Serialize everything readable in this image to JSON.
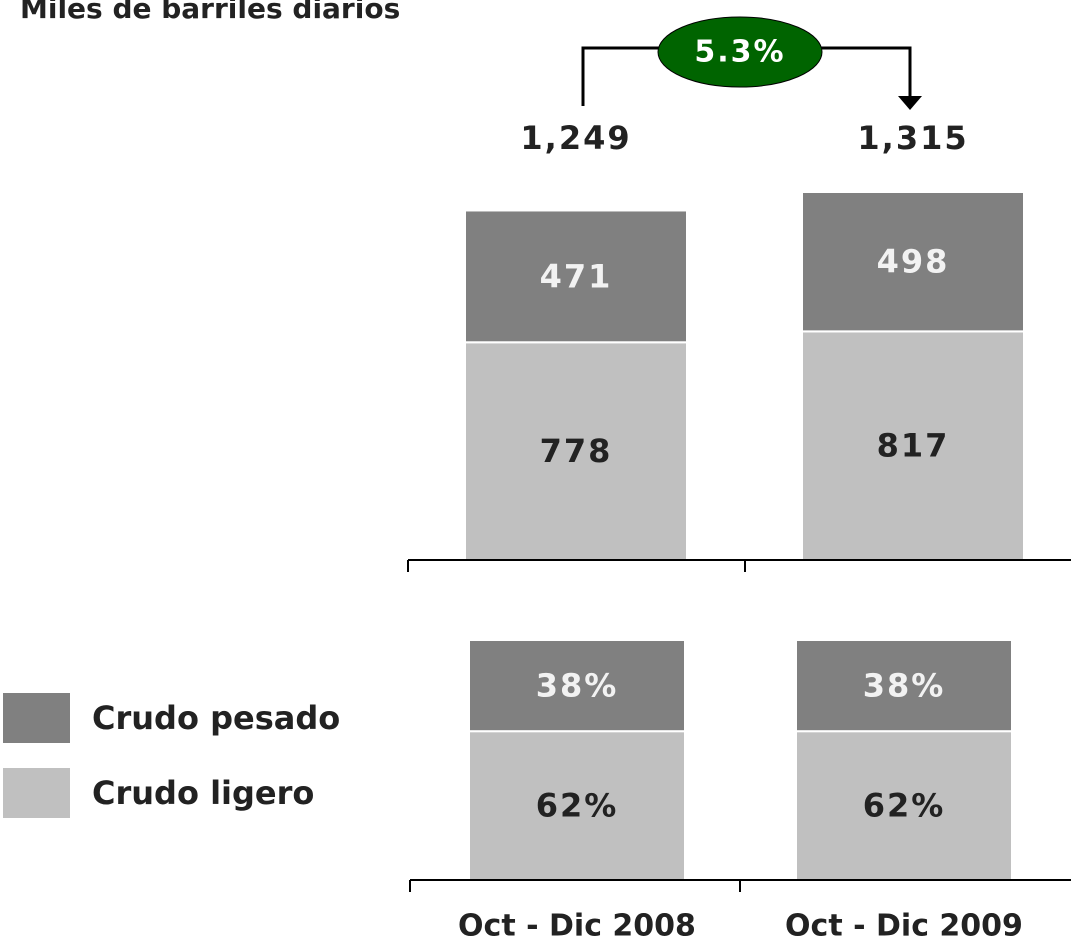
{
  "chart_data": [
    {
      "type": "bar",
      "stacked": true,
      "title": "Miles de barriles diarios",
      "categories": [
        null,
        null
      ],
      "series": [
        {
          "name": "Crudo ligero",
          "color": "#c0c0c0",
          "values": [
            778,
            817
          ]
        },
        {
          "name": "Crudo pesado",
          "color": "#808080",
          "values": [
            471,
            498
          ]
        }
      ],
      "totals": [
        1249,
        1315
      ],
      "total_labels": [
        "1,249",
        "1,315"
      ],
      "annotation": "5.3%",
      "annotation_color": "#006400"
    },
    {
      "type": "bar",
      "stacked": true,
      "categories": [
        "Oct - Dic 2008",
        "Oct - Dic 2009"
      ],
      "series": [
        {
          "name": "Crudo ligero",
          "color": "#c0c0c0",
          "values": [
            62,
            62
          ],
          "value_labels": [
            "62%",
            "62%"
          ]
        },
        {
          "name": "Crudo pesado",
          "color": "#808080",
          "values": [
            38,
            38
          ],
          "value_labels": [
            "38%",
            "38%"
          ]
        }
      ]
    }
  ]
}
